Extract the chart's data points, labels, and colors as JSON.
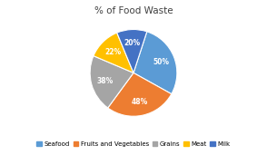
{
  "title": "% of Food Waste",
  "slices": [
    50,
    48,
    38,
    22,
    20
  ],
  "labels": [
    "Seafood",
    "Fruits and Vegetables",
    "Grains",
    "Meat",
    "Milk"
  ],
  "colors": [
    "#5B9BD5",
    "#ED7D31",
    "#A5A5A5",
    "#FFC000",
    "#4472C4"
  ],
  "startangle": 72,
  "legend_colors": [
    "#4472C4",
    "#ED7D31",
    "#A5A5A5",
    "#FFC000",
    "#4472C4"
  ],
  "legend_labels": [
    "Seafood",
    "Fruits and Vegetables",
    "Grains",
    "Meat",
    "Milk"
  ],
  "legend_patch_colors": [
    "#5B9BD5",
    "#ED7D31",
    "#A5A5A5",
    "#FFC000",
    "#4472C4"
  ],
  "pct_distance": 0.68,
  "title_fontsize": 7.5,
  "label_fontsize": 5.5,
  "legend_fontsize": 5
}
